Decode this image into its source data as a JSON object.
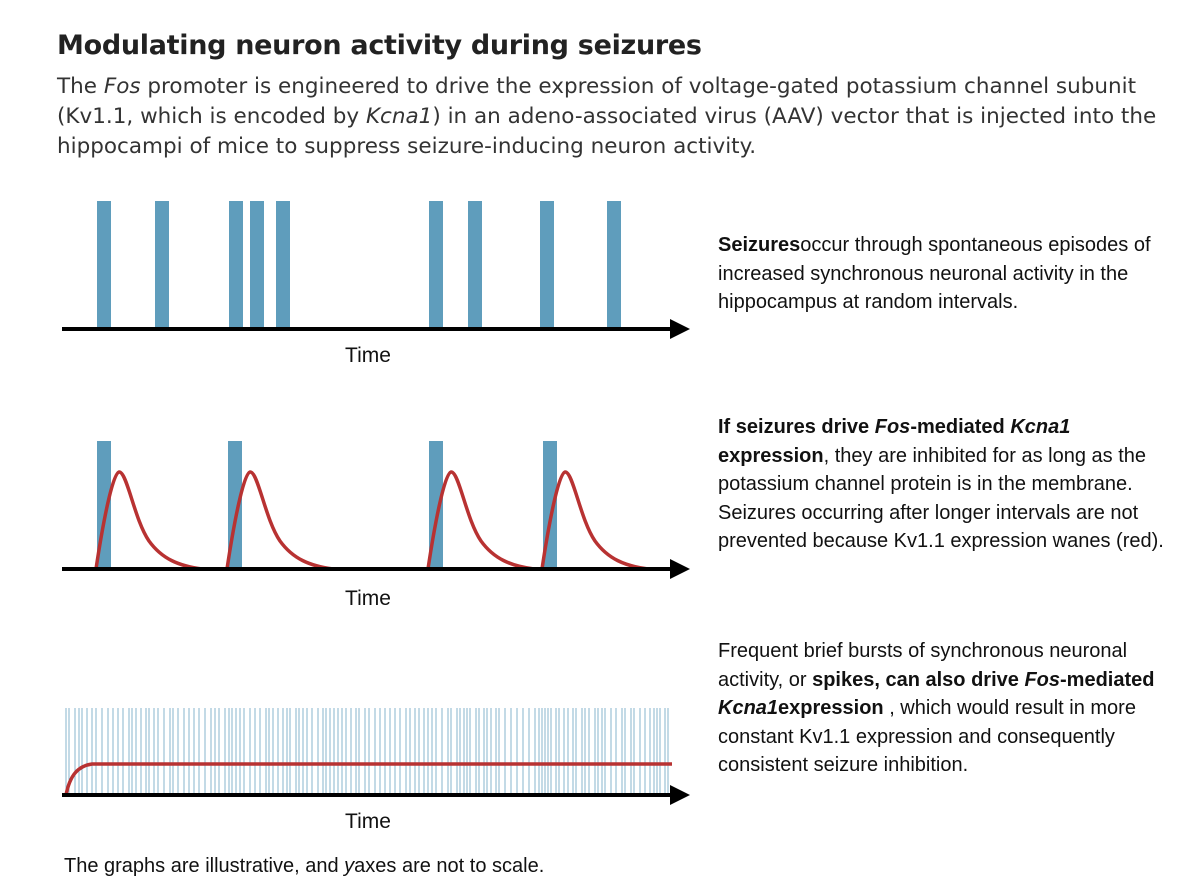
{
  "header": {
    "title": "Modulating neuron activity during seizures",
    "subtitle": {
      "p1": "The ",
      "fos": "Fos",
      "p2": " promoter is engineered to drive the expression of voltage-gated potassium channel subunit (Kv1.1, which is encoded by ",
      "kcna1": "Kcna1",
      "p3": ") in an adeno-associated virus (AAV) vector that is injected into the hippocampi of mice to suppress seizure-inducing neuron activity."
    }
  },
  "colors": {
    "activity": "#5f9dbc",
    "kv11": "#b83232",
    "axis": "#000000"
  },
  "panels": [
    {
      "time_label": "Time",
      "activity_bars_at": [
        104,
        162,
        236,
        257,
        283,
        436,
        475,
        547,
        614
      ],
      "description": {
        "bold1": "Seizures",
        "text1": "occur through spontaneous episodes of increased synchronous neuronal activity in the hippocampus at random intervals."
      }
    },
    {
      "time_label": "Time",
      "activity_bars_at": [
        104,
        235,
        436,
        550
      ],
      "kv11_expression": "transient rise after each seizure, then decay",
      "description": {
        "bold1": "If seizures drive ",
        "bold_italic1": "Fos",
        "bold2": "-mediated ",
        "bold_italic2": "Kcna1",
        "bold3": " expression",
        "text1": ", they are inhibited for as long as the potassium channel protein is in the membrane. Seizures occurring after longer intervals are not prevented because Kv1.1 expression wanes (red)."
      }
    },
    {
      "time_label": "Time",
      "kv11_expression": "rapid rise then constant plateau",
      "description": {
        "text1": "Frequent brief bursts of synchronous neuronal activity, or ",
        "bold1": "spikes, can also drive ",
        "bold_italic1": "Fos",
        "bold2": "-mediated ",
        "bold_italic2": "Kcna1",
        "bold3": "expression",
        "text2": " , which would result in more constant Kv1.1 expression and consequently consistent seizure inhibition."
      }
    }
  ],
  "footnote": {
    "p1": "The graphs are illustrative, and ",
    "y": "y",
    "p2": "axes are not to scale."
  }
}
